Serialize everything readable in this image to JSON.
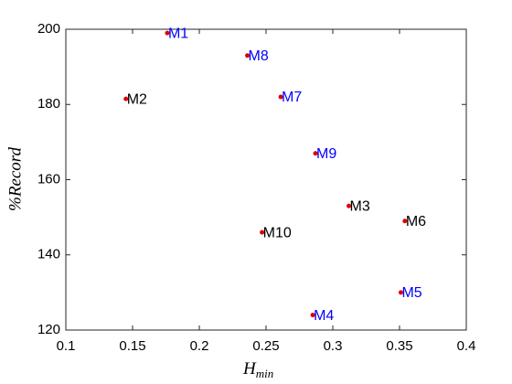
{
  "chart_data": {
    "type": "scatter",
    "xlabel": "H",
    "xlabel_sub": "min",
    "ylabel": "%Record",
    "labels": [
      "M1",
      "M8",
      "M2",
      "M7",
      "M9",
      "M3",
      "M6",
      "M10",
      "M5",
      "M4"
    ],
    "label_colors": [
      "#0000ff",
      "#0000ff",
      "#000000",
      "#0000ff",
      "#0000ff",
      "#000000",
      "#000000",
      "#000000",
      "#0000ff",
      "#0000ff"
    ],
    "x": [
      0.176,
      0.236,
      0.145,
      0.261,
      0.287,
      0.312,
      0.354,
      0.247,
      0.351,
      0.285
    ],
    "values": [
      199,
      193,
      181.5,
      182,
      167,
      153,
      149,
      146,
      130,
      124
    ],
    "color": "#e00000",
    "xlim": [
      0.1,
      0.4
    ],
    "xticks": [
      0.1,
      0.15,
      0.2,
      0.25,
      0.3,
      0.35,
      0.4
    ],
    "ylim": [
      120,
      200
    ],
    "yticks": [
      120,
      140,
      160,
      180,
      200
    ],
    "grid": false
  }
}
